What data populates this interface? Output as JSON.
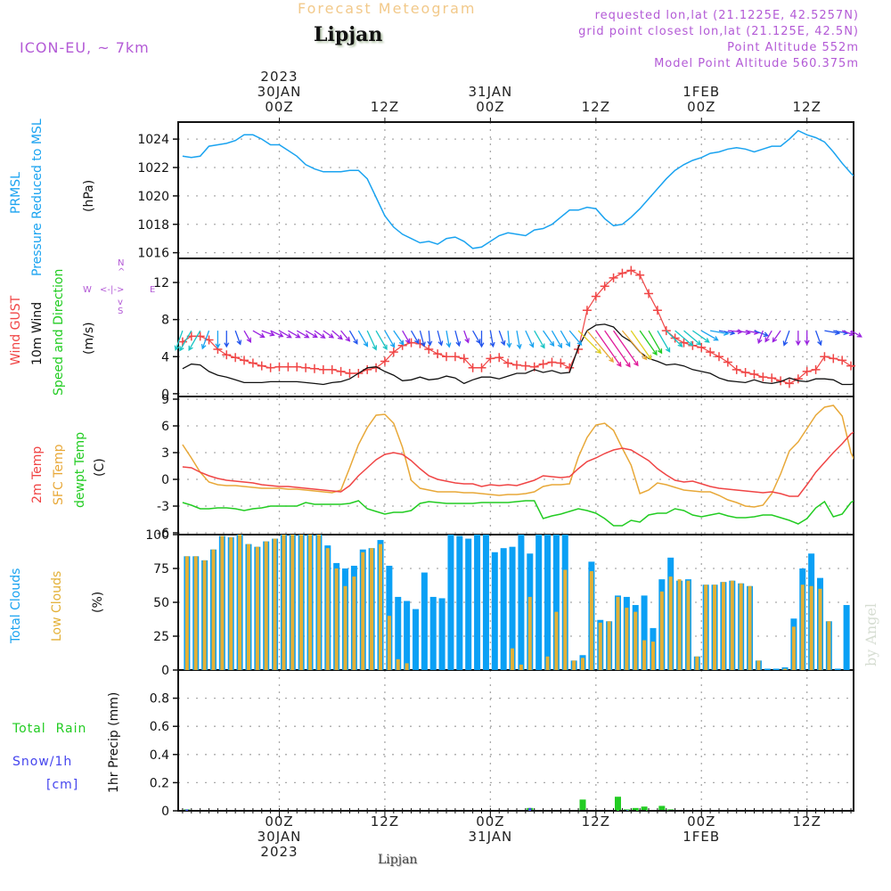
{
  "header": {
    "title": "Forecast Meteogram",
    "location": "Lipjan",
    "model": "ICON-EU, ~ 7km",
    "requested": "requested lon,lat (21.1225E, 42.5257N)",
    "grid_point": "grid point closest lon,lat (21.125E, 42.5N)",
    "point_altitude": "Point Altitude 552m",
    "model_altitude": "Model Point Altitude 560.375m",
    "footer_location": "Lipjan",
    "credit": "by Angel"
  },
  "time_axis": {
    "top_labels": [
      {
        "hour": 0,
        "lines": [
          "2023",
          "30JAN",
          "00Z"
        ]
      },
      {
        "hour": 12,
        "lines": [
          "12Z"
        ]
      },
      {
        "hour": 24,
        "lines": [
          "31JAN",
          "00Z"
        ]
      },
      {
        "hour": 36,
        "lines": [
          "12Z"
        ]
      },
      {
        "hour": 48,
        "lines": [
          "1FEB",
          "00Z"
        ]
      },
      {
        "hour": 60,
        "lines": [
          "12Z"
        ]
      }
    ],
    "bottom_labels": [
      {
        "hour": 0,
        "lines": [
          "00Z",
          "30JAN",
          "2023"
        ]
      },
      {
        "hour": 12,
        "lines": [
          "12Z"
        ]
      },
      {
        "hour": 24,
        "lines": [
          "00Z",
          "31JAN"
        ]
      },
      {
        "hour": 36,
        "lines": [
          "12Z"
        ]
      },
      {
        "hour": 48,
        "lines": [
          "00Z",
          "1FEB"
        ]
      },
      {
        "hour": 60,
        "lines": [
          "12Z"
        ]
      }
    ],
    "start_hour": -11,
    "range_hours": [
      -11.5,
      65.3
    ],
    "units": "hours from 2023-01-30 00Z"
  },
  "panel_labels": {
    "pressure": {
      "l1": "PRMSL",
      "l2": "Pressure Reduced to MSL",
      "unit": "(hPa)"
    },
    "wind": {
      "l1": "Wind GUST",
      "l2": "10m Wind",
      "l3": "Speed and Direction",
      "unit": "(m/s)",
      "compass": {
        "n": "N",
        "s": "S",
        "e": "E",
        "w": "W"
      }
    },
    "temp": {
      "l1": "2m Temp",
      "l2": "SFC Temp",
      "l3": "dewpt Temp",
      "unit": "(C)"
    },
    "clouds": {
      "l1": "Total Clouds",
      "l2": "Low Clouds",
      "unit": "(%)"
    },
    "precip": {
      "l1": "Total  Rain",
      "l2": "Snow/1h",
      "l3": "[cm]",
      "unit": "1hr Precip (mm)"
    }
  },
  "colors": {
    "pressure": "#1aa3f0",
    "gust": "#f04545",
    "wind": "#111111",
    "temp2m": "#f04545",
    "sfc": "#e8a838",
    "dewpt": "#22cc22",
    "total_clouds": "#0aa0f5",
    "low_clouds": "#e3b036",
    "rain": "#22cc22",
    "snow": "#4444ee",
    "labels_purple": "#b35ad6"
  },
  "chart_data": [
    {
      "type": "line",
      "title": "PRMSL Pressure Reduced to MSL",
      "ylabel": "(hPa)",
      "ylim": [
        1015.6,
        1025.2
      ],
      "yticks": [
        1016,
        1018,
        1020,
        1022,
        1024
      ],
      "grid": true,
      "series": [
        {
          "name": "PRMSL",
          "values": [
            1022.8,
            1022.7,
            1022.8,
            1023.5,
            1023.6,
            1023.7,
            1023.9,
            1024.3,
            1024.3,
            1024.0,
            1023.6,
            1023.6,
            1023.2,
            1022.8,
            1022.2,
            1021.9,
            1021.7,
            1021.7,
            1021.7,
            1021.8,
            1021.8,
            1021.2,
            1019.9,
            1018.6,
            1017.8,
            1017.3,
            1017.0,
            1016.7,
            1016.8,
            1016.6,
            1017.0,
            1017.1,
            1016.8,
            1016.3,
            1016.4,
            1016.8,
            1017.2,
            1017.4,
            1017.3,
            1017.2,
            1017.6,
            1017.7,
            1018.0,
            1018.5,
            1019.0,
            1019.0,
            1019.2,
            1019.1,
            1018.4,
            1017.9,
            1018.0,
            1018.5,
            1019.1,
            1019.8,
            1020.5,
            1021.2,
            1021.8,
            1022.2,
            1022.5,
            1022.7,
            1023.0,
            1023.1,
            1023.3,
            1023.4,
            1023.3,
            1023.1,
            1023.3,
            1023.5,
            1023.5,
            1024.0,
            1024.6,
            1024.3,
            1024.1,
            1023.8,
            1023.1,
            1022.3,
            1021.6,
            1021.0,
            1020.7,
            1020.3,
            1020.3,
            1020.8
          ]
        }
      ]
    },
    {
      "type": "line",
      "title": "Wind GUST / 10m Wind Speed and Direction",
      "ylabel": "(m/s)",
      "ylim": [
        -0.3,
        14.6
      ],
      "yticks": [
        0,
        4,
        8,
        12
      ],
      "grid": true,
      "series": [
        {
          "name": "Wind GUST",
          "values": [
            5.6,
            6.2,
            6.2,
            5.8,
            4.8,
            4.2,
            3.9,
            3.6,
            3.3,
            3.0,
            2.8,
            2.9,
            2.9,
            2.9,
            2.8,
            2.7,
            2.6,
            2.6,
            2.4,
            2.2,
            2.2,
            2.6,
            2.8,
            3.5,
            4.5,
            5.2,
            5.5,
            5.4,
            4.8,
            4.3,
            4.0,
            4.0,
            3.8,
            2.8,
            2.8,
            3.8,
            3.9,
            3.3,
            3.1,
            3.0,
            2.9,
            3.2,
            3.4,
            3.3,
            2.8,
            4.8,
            9.0,
            10.5,
            11.6,
            12.5,
            13.0,
            13.3,
            12.8,
            10.8,
            9.0,
            6.8,
            6.0,
            5.5,
            5.2,
            5.0,
            4.5,
            4.0,
            3.4,
            2.6,
            2.3,
            2.1,
            1.8,
            1.7,
            1.4,
            1.1,
            1.6,
            2.4,
            2.6,
            4.0,
            3.8,
            3.6,
            3.0,
            2.7,
            2.6,
            2.5,
            1.2,
            1.4
          ]
        },
        {
          "name": "10m Wind",
          "values": [
            2.7,
            3.2,
            3.1,
            2.4,
            2.0,
            1.8,
            1.5,
            1.2,
            1.2,
            1.2,
            1.3,
            1.3,
            1.3,
            1.3,
            1.2,
            1.1,
            1.0,
            1.2,
            1.3,
            1.6,
            2.2,
            2.8,
            2.9,
            2.4,
            2.0,
            1.4,
            1.5,
            1.8,
            1.5,
            1.6,
            1.9,
            1.7,
            1.1,
            1.5,
            1.8,
            1.8,
            1.6,
            1.9,
            2.2,
            2.2,
            2.6,
            2.3,
            2.5,
            2.2,
            2.3,
            5.0,
            6.8,
            7.4,
            7.5,
            7.2,
            6.2,
            5.6,
            4.5,
            3.8,
            3.5,
            3.1,
            3.2,
            3.0,
            2.6,
            2.4,
            2.2,
            1.7,
            1.4,
            1.3,
            1.2,
            1.5,
            1.2,
            1.1,
            1.3,
            1.7,
            1.4,
            1.3,
            1.6,
            1.6,
            1.5,
            1.0,
            1.0,
            1.2,
            0.6,
            0.7,
            0.8,
            1.1
          ]
        }
      ],
      "wind_arrows": {
        "level_mps": 6.8,
        "directions_deg_to": [
          200,
          210,
          210,
          200,
          180,
          180,
          160,
          150,
          120,
          110,
          115,
          120,
          120,
          120,
          120,
          125,
          125,
          130,
          140,
          150,
          150,
          155,
          150,
          150,
          145,
          150,
          150,
          165,
          175,
          165,
          170,
          165,
          160,
          150,
          180,
          170,
          160,
          175,
          170,
          155,
          150,
          145,
          150,
          150,
          140,
          135,
          140,
          145,
          145,
          145,
          140,
          145,
          145,
          150,
          150,
          135,
          130,
          130,
          125,
          120,
          100,
          100,
          95,
          100,
          100,
          110,
          200,
          210,
          215,
          200,
          180,
          180,
          160,
          100,
          100,
          110,
          120,
          70,
          65,
          50,
          60
        ]
      }
    },
    {
      "type": "line",
      "title": "2m Temp / SFC Temp / dewpt Temp",
      "ylabel": "(C)",
      "ylim": [
        -6.2,
        9.3
      ],
      "yticks": [
        -6,
        -3,
        0,
        3,
        6,
        9
      ],
      "grid": true,
      "series": [
        {
          "name": "2m Temp",
          "values": [
            1.4,
            1.3,
            0.8,
            0.4,
            0.1,
            -0.1,
            -0.2,
            -0.3,
            -0.4,
            -0.6,
            -0.7,
            -0.8,
            -0.8,
            -0.9,
            -1.0,
            -1.1,
            -1.2,
            -1.3,
            -1.4,
            -0.7,
            0.4,
            1.3,
            2.2,
            2.8,
            3.0,
            2.8,
            2.1,
            1.2,
            0.4,
            0.0,
            -0.2,
            -0.4,
            -0.5,
            -0.5,
            -0.8,
            -0.6,
            -0.7,
            -0.6,
            -0.7,
            -0.4,
            -0.1,
            0.4,
            0.3,
            0.2,
            0.3,
            1.2,
            2.0,
            2.4,
            2.9,
            3.3,
            3.5,
            3.3,
            2.7,
            2.1,
            1.2,
            0.5,
            -0.1,
            -0.3,
            -0.2,
            -0.5,
            -0.8,
            -1.0,
            -1.1,
            -1.2,
            -1.3,
            -1.4,
            -1.5,
            -1.4,
            -1.6,
            -1.9,
            -1.9,
            -0.6,
            0.8,
            1.9,
            3.0,
            4.0,
            5.1,
            5.7,
            5.8,
            5.2,
            3.8,
            2.2
          ]
        },
        {
          "name": "SFC Temp",
          "values": [
            3.9,
            2.4,
            0.8,
            -0.3,
            -0.6,
            -0.7,
            -0.7,
            -0.8,
            -0.9,
            -1.0,
            -1.0,
            -1.0,
            -1.1,
            -1.1,
            -1.2,
            -1.3,
            -1.4,
            -1.5,
            -1.2,
            1.3,
            3.9,
            5.8,
            7.2,
            7.3,
            6.3,
            3.6,
            -0.1,
            -1.0,
            -1.2,
            -1.4,
            -1.4,
            -1.4,
            -1.5,
            -1.5,
            -1.6,
            -1.7,
            -1.8,
            -1.7,
            -1.7,
            -1.6,
            -1.4,
            -0.8,
            -0.6,
            -0.6,
            -0.5,
            2.5,
            4.7,
            6.1,
            6.3,
            5.5,
            3.5,
            1.6,
            -1.6,
            -1.2,
            -0.4,
            -0.6,
            -0.9,
            -1.2,
            -1.3,
            -1.4,
            -1.4,
            -1.8,
            -2.3,
            -2.6,
            -3.0,
            -3.1,
            -2.9,
            -1.6,
            0.6,
            3.2,
            4.2,
            5.7,
            7.2,
            8.1,
            8.3,
            7.1,
            3.0,
            0.8,
            -0.7
          ]
        },
        {
          "name": "dewpt Temp",
          "values": [
            -2.6,
            -2.9,
            -3.3,
            -3.3,
            -3.2,
            -3.2,
            -3.3,
            -3.5,
            -3.3,
            -3.2,
            -3.0,
            -3.0,
            -3.0,
            -3.0,
            -2.6,
            -2.8,
            -2.8,
            -2.8,
            -2.8,
            -2.7,
            -2.4,
            -3.3,
            -3.6,
            -3.9,
            -3.7,
            -3.7,
            -3.5,
            -2.7,
            -2.5,
            -2.6,
            -2.7,
            -2.7,
            -2.7,
            -2.7,
            -2.6,
            -2.6,
            -2.6,
            -2.6,
            -2.5,
            -2.4,
            -2.4,
            -4.4,
            -4.1,
            -3.9,
            -3.6,
            -3.3,
            -3.5,
            -3.8,
            -4.4,
            -5.2,
            -5.2,
            -4.6,
            -4.8,
            -4.0,
            -3.8,
            -3.8,
            -3.3,
            -3.5,
            -4.0,
            -4.2,
            -4.0,
            -3.8,
            -4.1,
            -4.3,
            -4.3,
            -4.2,
            -4.0,
            -4.0,
            -4.3,
            -4.6,
            -5.0,
            -4.4,
            -3.2,
            -2.5,
            -4.2,
            -3.9,
            -2.6,
            -2.0,
            -1.8,
            -2.5,
            -1.4,
            -1.7,
            -1.5
          ]
        }
      ]
    },
    {
      "type": "bar",
      "title": "Total Clouds / Low Clouds",
      "ylabel": "(%)",
      "ylim": [
        0,
        100
      ],
      "yticks": [
        0,
        25,
        50,
        75,
        100
      ],
      "grid": true,
      "series": [
        {
          "name": "Total Clouds",
          "values": [
            84,
            84,
            81,
            89,
            99,
            98,
            100,
            93,
            91,
            95,
            97,
            100,
            100,
            100,
            100,
            100,
            92,
            79,
            75,
            77,
            89,
            90,
            96,
            77,
            54,
            51,
            45,
            72,
            54,
            53,
            100,
            99,
            97,
            100,
            100,
            87,
            90,
            91,
            100,
            86,
            100,
            100,
            100,
            100,
            7,
            11,
            80,
            37,
            36,
            55,
            54,
            48,
            55,
            31,
            67,
            83,
            66,
            67,
            10,
            63,
            63,
            65,
            66,
            64,
            62,
            7,
            1,
            1,
            2,
            38,
            75,
            86,
            68,
            36,
            1,
            48,
            87,
            100,
            100
          ]
        },
        {
          "name": "Low Clouds",
          "values": [
            84,
            84,
            81,
            89,
            99,
            98,
            100,
            93,
            91,
            95,
            97,
            100,
            100,
            100,
            100,
            100,
            90,
            75,
            62,
            69,
            87,
            90,
            93,
            40,
            8,
            5,
            0,
            0,
            0,
            0,
            0,
            0,
            0,
            0,
            0,
            0,
            0,
            16,
            4,
            54,
            0,
            10,
            43,
            74,
            7,
            9,
            73,
            35,
            36,
            54,
            46,
            43,
            22,
            21,
            58,
            69,
            67,
            66,
            10,
            63,
            63,
            65,
            66,
            64,
            62,
            7,
            0,
            0,
            1,
            32,
            63,
            62,
            60,
            36,
            0,
            0,
            0,
            0,
            0
          ]
        }
      ]
    },
    {
      "type": "bar",
      "title": "1hr Precip",
      "ylabel": "1hr Precip (mm)",
      "ylim": [
        0,
        1.0
      ],
      "yticks": [
        0,
        0.2,
        0.4,
        0.6,
        0.8
      ],
      "grid": true,
      "series": [
        {
          "name": "Total Rain",
          "values": {
            "-11": 0.01,
            "28": 0.02,
            "34": 0.08,
            "38": 0.1,
            "39": 0.01,
            "40": 0.02,
            "41": 0.03,
            "43": 0.035,
            "44": 0.01
          }
        },
        {
          "name": "Snow/1h [cm]",
          "values": {
            "-11": 0.01,
            "28": 0.02,
            "39": 0.005,
            "43": 0.005
          }
        }
      ]
    }
  ]
}
